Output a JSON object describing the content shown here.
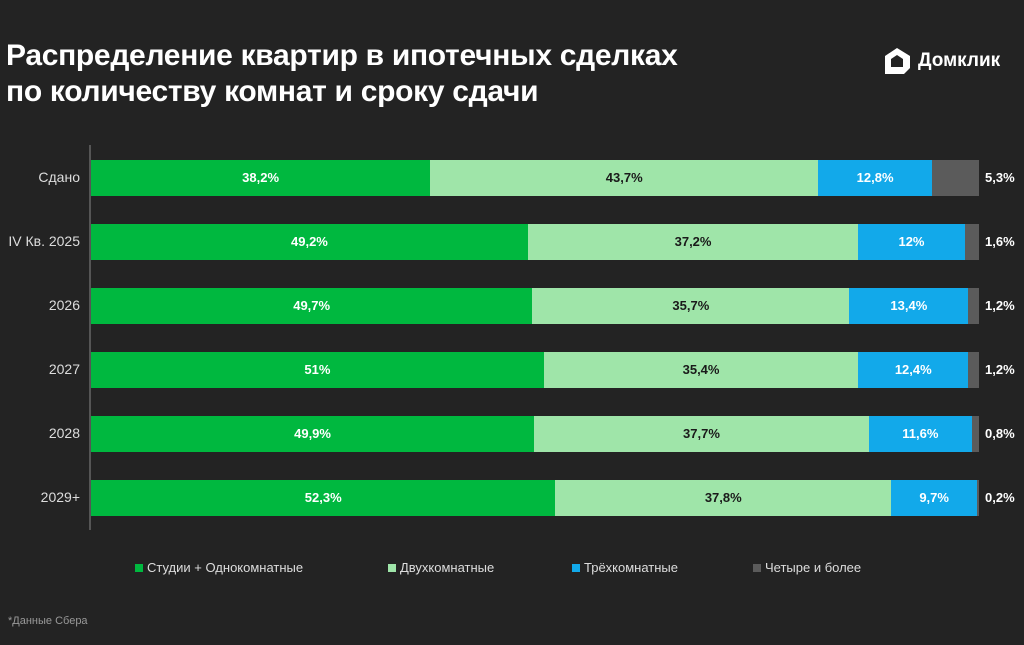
{
  "header": {
    "title_line1": "Распределение квартир в ипотечных сделках",
    "title_line2": "по количеству комнат и сроку сдачи",
    "logo_text": "Домклик"
  },
  "footnote": "*Данные Сбера",
  "chart_data": {
    "type": "bar",
    "orientation": "horizontal-stacked-100",
    "title": "Распределение квартир в ипотечных сделках по количеству комнат и сроку сдачи",
    "categories": [
      "Сдано",
      "IV Кв. 2025",
      "2026",
      "2027",
      "2028",
      "2029+"
    ],
    "series": [
      {
        "name": "Студии + Однокомнатные",
        "color": "#00b83f",
        "values": [
          38.2,
          49.2,
          49.7,
          51,
          49.9,
          52.3
        ],
        "labels": [
          "38,2%",
          "49,2%",
          "49,7%",
          "51%",
          "49,9%",
          "52,3%"
        ]
      },
      {
        "name": "Двухкомнатные",
        "color": "#9fe5a9",
        "values": [
          43.7,
          37.2,
          35.7,
          35.4,
          37.7,
          37.8
        ],
        "labels": [
          "43,7%",
          "37,2%",
          "35,7%",
          "35,4%",
          "37,7%",
          "37,8%"
        ]
      },
      {
        "name": "Трёхкомнатные",
        "color": "#12a9ea",
        "values": [
          12.8,
          12,
          13.4,
          12.4,
          11.6,
          9.7
        ],
        "labels": [
          "12,8%",
          "12%",
          "13,4%",
          "12,4%",
          "11,6%",
          "9,7%"
        ]
      },
      {
        "name": "Четыре и более",
        "color": "#5b5b5b",
        "values": [
          5.3,
          1.6,
          1.2,
          1.2,
          0.8,
          0.2
        ],
        "labels": [
          "5,3%",
          "1,6%",
          "1,2%",
          "1,2%",
          "0,8%",
          "0,2%"
        ]
      }
    ],
    "xlim": [
      0,
      100
    ],
    "legend": "bottom"
  }
}
